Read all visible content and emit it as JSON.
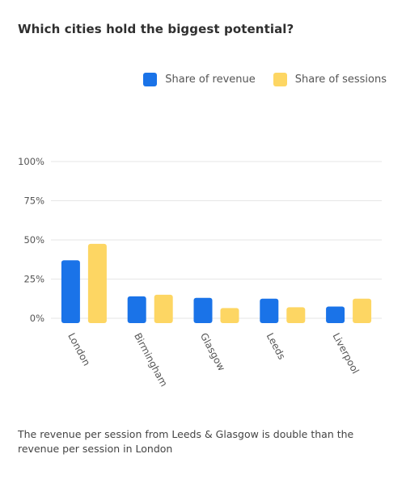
{
  "title": "Which cities hold the biggest potential?",
  "footnote": "The revenue per session from Leeds & Glasgow is double than the revenue per session in London",
  "chart_data": {
    "type": "bar",
    "categories": [
      "London",
      "Birmingham",
      "Glasgow",
      "Leeds",
      "Liverpool"
    ],
    "series": [
      {
        "name": "Share of revenue",
        "color": "#1a73e8",
        "values": [
          37,
          14,
          13,
          12.5,
          7.5
        ]
      },
      {
        "name": "Share of sessions",
        "color": "#fdd663",
        "values": [
          47.5,
          15,
          6.5,
          7,
          12.5
        ]
      }
    ],
    "ylim": [
      0,
      100
    ],
    "yticks": [
      {
        "value": 0,
        "label": "0%"
      },
      {
        "value": 25,
        "label": "25%"
      },
      {
        "value": 50,
        "label": "50%"
      },
      {
        "value": 75,
        "label": "75%"
      },
      {
        "value": 100,
        "label": "100%"
      }
    ],
    "grid": true,
    "legend_position": "top-right"
  }
}
